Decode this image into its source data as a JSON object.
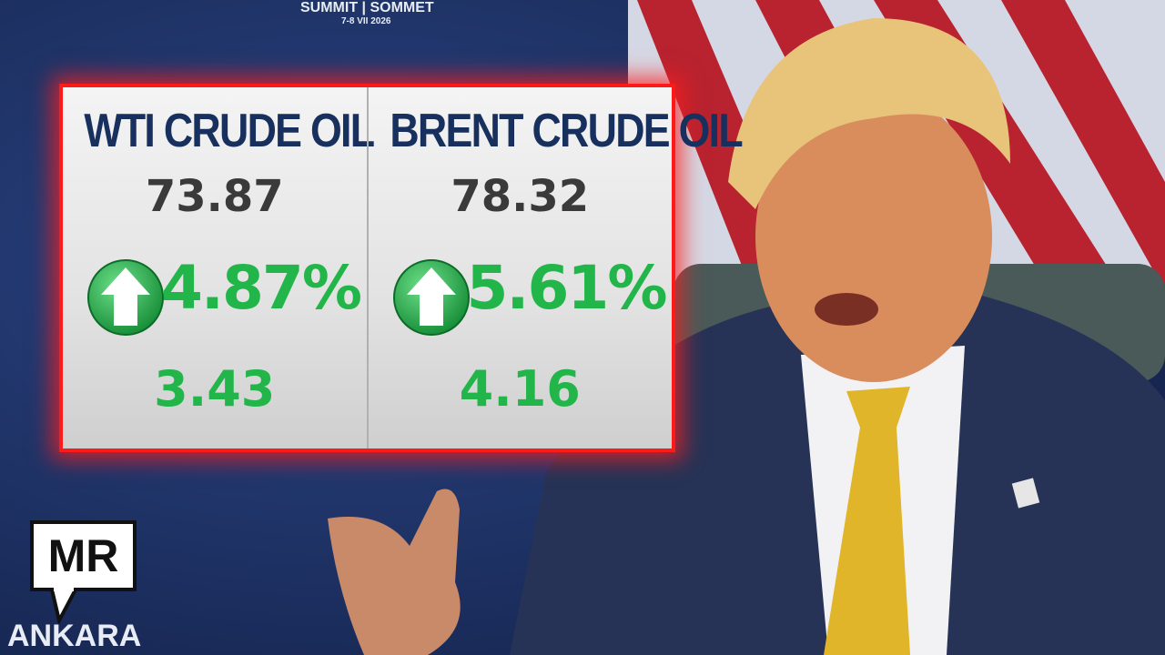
{
  "backdrop": {
    "event": "SUMMIT | SOMMET",
    "dates": "7-8 VII 2026",
    "city": "ANKARA"
  },
  "ticker": {
    "columns": [
      {
        "title": "WTI CRUDE OIL",
        "price": "73.87",
        "change_percent": "4.87%",
        "change": "3.43"
      },
      {
        "title": "BRENT CRUDE OIL",
        "price": "78.32",
        "change_percent": "5.61%",
        "change": "4.16"
      }
    ]
  },
  "logo": {
    "text": "MR"
  }
}
